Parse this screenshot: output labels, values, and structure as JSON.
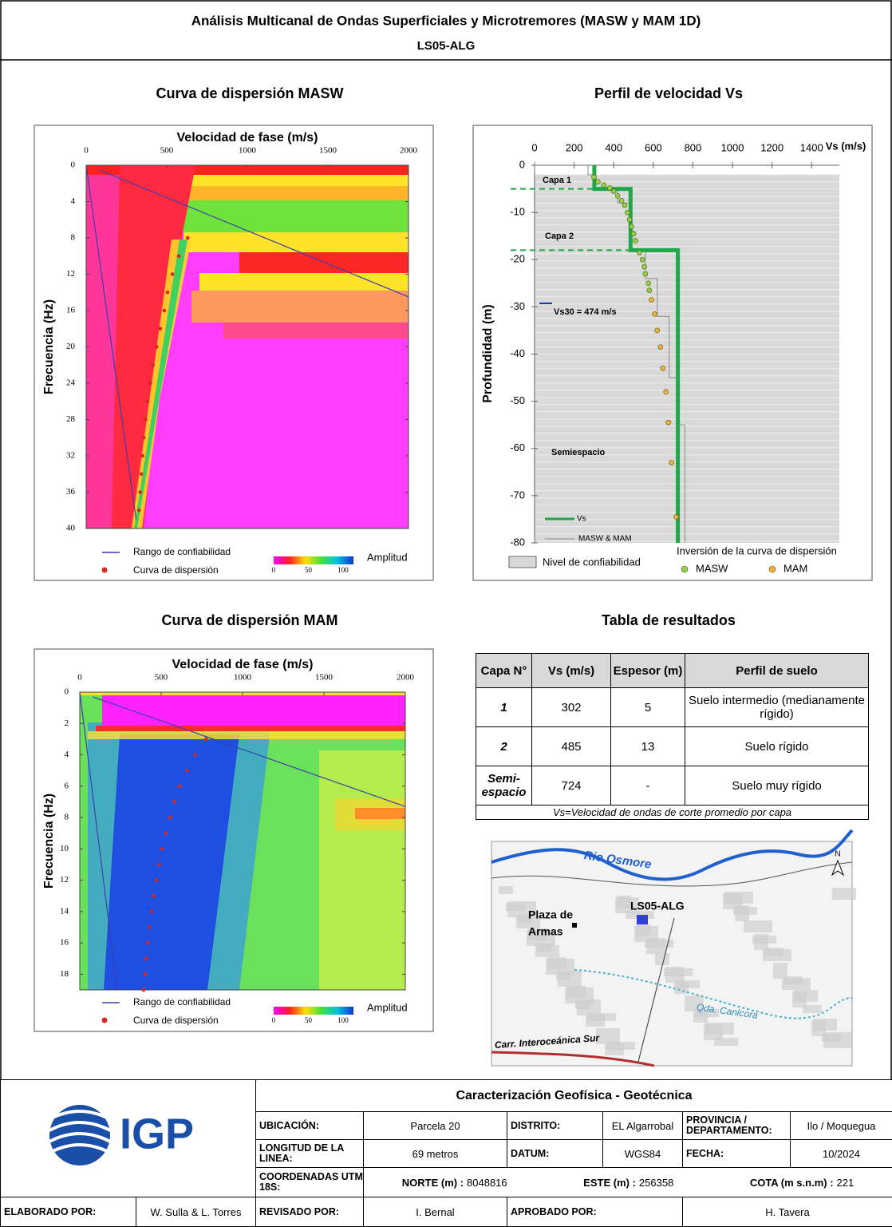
{
  "header": {
    "title": "Análisis Multicanal de Ondas Superficiales y Microtremores (MASW y MAM 1D)",
    "subtitle": "LS05-ALG"
  },
  "masw": {
    "title": "Curva de dispersión MASW",
    "x_label": "Velocidad de fase (m/s)",
    "y_label": "Frecuencia (Hz)",
    "xlim": [
      0,
      2000
    ],
    "xticks": [
      0,
      500,
      1000,
      1500,
      2000
    ],
    "ylim": [
      0,
      40
    ],
    "yticks": [
      0,
      4,
      8,
      12,
      16,
      20,
      24,
      28,
      32,
      36,
      40
    ],
    "curve": {
      "name": "Curva de dispersión",
      "color": "#d42a1e",
      "frequency": [
        8,
        10,
        12,
        14,
        16,
        18,
        20,
        22,
        24,
        26,
        28,
        30,
        32,
        34,
        36,
        38
      ],
      "velocity": [
        630,
        575,
        535,
        505,
        485,
        460,
        437,
        415,
        398,
        382,
        369,
        358,
        350,
        342,
        335,
        328
      ]
    },
    "confidence": {
      "name": "Rango de confiabilidad",
      "color": "#3b3fb0",
      "lines": [
        {
          "velocity": [
            80,
            2000
          ],
          "frequency": [
            0.5,
            14.5
          ]
        },
        {
          "velocity": [
            0,
            310
          ],
          "frequency": [
            0,
            39
          ]
        }
      ]
    },
    "amplitude": {
      "label": "Amplitud",
      "ticks": [
        0,
        50,
        100
      ]
    }
  },
  "mam": {
    "title": "Curva de dispersión MAM",
    "x_label": "Velocidad de fase (m/s)",
    "y_label": "Frecuencia (Hz)",
    "xlim": [
      0,
      2000
    ],
    "xticks": [
      0,
      500,
      1000,
      1500,
      2000
    ],
    "ylim": [
      0,
      19
    ],
    "yticks": [
      0,
      2,
      4,
      6,
      8,
      10,
      12,
      14,
      16,
      18
    ],
    "curve": {
      "name": "Curva de dispersión",
      "color": "#d42a1e",
      "frequency": [
        3,
        4,
        5,
        6,
        7,
        8,
        9,
        10,
        11,
        12,
        13,
        14,
        15,
        16,
        17,
        18,
        19
      ],
      "velocity": [
        775,
        710,
        660,
        613,
        580,
        554,
        528,
        505,
        487,
        470,
        455,
        441,
        428,
        417,
        409,
        402,
        392
      ]
    },
    "confidence": {
      "name": "Rango de confiabilidad",
      "color": "#3b3fb0",
      "lines": [
        {
          "velocity": [
            80,
            2000
          ],
          "frequency": [
            0.3,
            7.3
          ]
        },
        {
          "velocity": [
            0,
            230
          ],
          "frequency": [
            0,
            19
          ]
        }
      ]
    },
    "amplitude": {
      "label": "Amplitud",
      "ticks": [
        0,
        50,
        100
      ]
    }
  },
  "vs_profile": {
    "title": "Perfil de velocidad Vs",
    "x_label": "Vs (m/s)",
    "y_label": "Profundidad (m)",
    "xlim": [
      0,
      1540
    ],
    "xticks": [
      0,
      200,
      400,
      600,
      800,
      1000,
      1200,
      1400
    ],
    "ylim": [
      -80,
      0
    ],
    "yticks": [
      0,
      -10,
      -20,
      -30,
      -40,
      -50,
      -60,
      -70,
      -80
    ],
    "series": [
      {
        "name": "Vs",
        "color": "#1fa84a",
        "vs": [
          302,
          302,
          485,
          485,
          724,
          724
        ],
        "depth": [
          0,
          -5,
          -5,
          -18,
          -18,
          -80
        ]
      },
      {
        "name": "MASW & MAM",
        "color": "#8c8c8c",
        "vs": [
          270,
          270,
          300,
          300,
          420,
          420,
          480,
          480,
          560,
          560,
          620,
          620,
          680,
          680,
          720,
          720,
          760,
          760
        ],
        "depth": [
          0,
          -2,
          -2,
          -5,
          -5,
          -8,
          -8,
          -18,
          -18,
          -24,
          -24,
          -32,
          -32,
          -45,
          -45,
          -55,
          -55,
          -80
        ]
      }
    ],
    "points_title": "Inversión de la curva de dispersión",
    "points": [
      {
        "name": "MASW",
        "color": "#8fd14f",
        "vs": [
          300,
          320,
          350,
          380,
          400,
          420,
          440,
          455,
          470,
          480,
          490,
          500,
          510,
          530,
          545,
          555,
          560,
          575,
          580
        ],
        "depth": [
          -2.5,
          -3.5,
          -4.2,
          -4.8,
          -5.5,
          -6.5,
          -7.5,
          -8.5,
          -10,
          -11.5,
          -13,
          -14.5,
          -16,
          -18.5,
          -20,
          -21.5,
          -23,
          -25,
          -26.5
        ]
      },
      {
        "name": "MAM",
        "color": "#f0b040",
        "vs": [
          591,
          607,
          620,
          636,
          648,
          664,
          676,
          692,
          716
        ],
        "depth": [
          -28.5,
          -31.5,
          -35,
          -38.5,
          -43,
          -48,
          -54.5,
          -63,
          -74.5
        ]
      }
    ],
    "reliability": {
      "name": "Nivel de confiabilidad",
      "depth_top": -2
    },
    "annotations": {
      "layer1": "Capa 1",
      "layer2": "Capa 2",
      "halfspace": "Semiespacio",
      "vs30": "Vs30 = 474 m/s"
    }
  },
  "table": {
    "title": "Tabla de resultados",
    "columns": [
      "Capa N°",
      "Vs (m/s)",
      "Espesor (m)",
      "Perfil de suelo"
    ],
    "rows": [
      [
        1,
        302,
        5,
        "Suelo intermedio (medianamente rígido)"
      ],
      [
        2,
        485,
        13,
        "Suelo rígido"
      ],
      [
        "Semi-espacio",
        724,
        "-",
        "Suelo muy rígido"
      ]
    ],
    "note": "Vs=Velocidad de ondas de corte promedio por capa"
  },
  "map": {
    "river": "Rio Osmore",
    "plaza": [
      "Plaza de",
      "Armas"
    ],
    "station": "LS05-ALG",
    "creek": "Qda. Canlcora",
    "road": "Carr. Interoceánica Sur",
    "north": "N"
  },
  "footer": {
    "logo": "IGP",
    "title": "Caracterización Geofísica - Geotécnica",
    "location": {
      "label": "UBICACIÓN:",
      "value": "Parcela 20"
    },
    "district": {
      "label": "DISTRITO:",
      "value": "EL Algarrobal"
    },
    "province": {
      "label": "PROVINCIA / DEPARTAMENTO:",
      "value": "Ilo / Moquegua"
    },
    "line_length": {
      "label": "LONGITUD DE LA LINEA:",
      "value": "69 metros"
    },
    "datum": {
      "label": "DATUM:",
      "value": "WGS84"
    },
    "date": {
      "label": "FECHA:",
      "value": "10/2024"
    },
    "coordinates": {
      "label": "COORDENADAS UTM 18S:",
      "north": {
        "label": "NORTE (m) :",
        "value": 8048816
      },
      "east": {
        "label": "ESTE (m) :",
        "value": 256358
      },
      "elevation": {
        "label": "COTA (m s.n.m) :",
        "value": 221
      }
    },
    "prepared_by": {
      "label": "ELABORADO POR:",
      "value": "W. Sulla & L. Torres"
    },
    "reviewed_by": {
      "label": "REVISADO POR:",
      "value": "I. Bernal"
    },
    "approved_by": {
      "label": "APROBADO POR:",
      "value": "H. Tavera"
    }
  }
}
